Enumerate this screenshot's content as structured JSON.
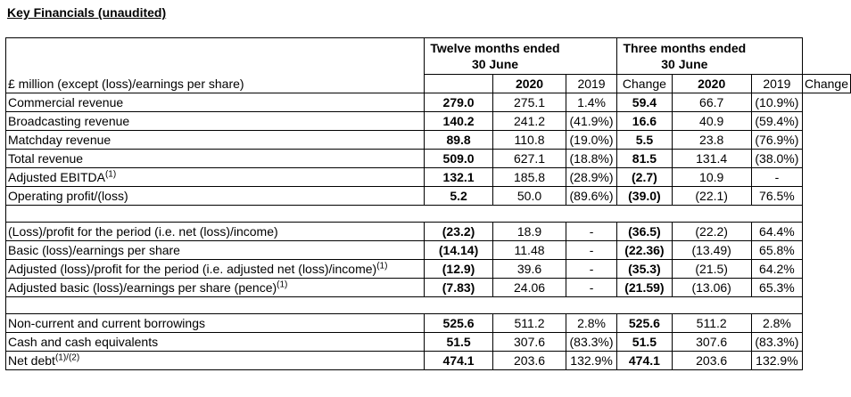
{
  "title": "Key Financials (unaudited)",
  "header": {
    "row_label": "£ million (except (loss)/earnings per share)",
    "group1_line1": "Twelve months ended",
    "group1_line2": "30 June",
    "group2_line1": "Three months ended",
    "group2_line2": "30 June",
    "cols": [
      "2020",
      "2019",
      "Change",
      "2020",
      "2019",
      "Change"
    ]
  },
  "sections": [
    {
      "rows": [
        {
          "label": "Commercial revenue",
          "sup": "",
          "v": [
            "279.0",
            "275.1",
            "1.4%",
            "59.4",
            "66.7",
            "(10.9%)"
          ]
        },
        {
          "label": "Broadcasting revenue",
          "sup": "",
          "v": [
            "140.2",
            "241.2",
            "(41.9%)",
            "16.6",
            "40.9",
            "(59.4%)"
          ]
        },
        {
          "label": "Matchday revenue",
          "sup": "",
          "v": [
            "89.8",
            "110.8",
            "(19.0%)",
            "5.5",
            "23.8",
            "(76.9%)"
          ]
        },
        {
          "label": "Total revenue",
          "sup": "",
          "v": [
            "509.0",
            "627.1",
            "(18.8%)",
            "81.5",
            "131.4",
            "(38.0%)"
          ]
        },
        {
          "label": "Adjusted EBITDA",
          "sup": "(1)",
          "v": [
            "132.1",
            "185.8",
            "(28.9%)",
            "(2.7)",
            "10.9",
            "-"
          ]
        },
        {
          "label": "Operating profit/(loss)",
          "sup": "",
          "v": [
            "5.2",
            "50.0",
            "(89.6%)",
            "(39.0)",
            "(22.1)",
            "76.5%"
          ]
        }
      ]
    },
    {
      "rows": [
        {
          "label": "(Loss)/profit for the period (i.e. net (loss)/income)",
          "sup": "",
          "v": [
            "(23.2)",
            "18.9",
            "-",
            "(36.5)",
            "(22.2)",
            "64.4%"
          ]
        },
        {
          "label": "Basic (loss)/earnings per share",
          "sup": "",
          "v": [
            "(14.14)",
            "11.48",
            "-",
            "(22.36)",
            "(13.49)",
            "65.8%"
          ]
        },
        {
          "label": "Adjusted (loss)/profit for the period (i.e. adjusted net (loss)/income)",
          "sup": "(1)",
          "v": [
            "(12.9)",
            "39.6",
            "-",
            "(35.3)",
            "(21.5)",
            "64.2%"
          ]
        },
        {
          "label": "Adjusted basic (loss)/earnings per share (pence)",
          "sup": "(1)",
          "v": [
            "(7.83)",
            "24.06",
            "-",
            "(21.59)",
            "(13.06)",
            "65.3%"
          ]
        }
      ]
    },
    {
      "rows": [
        {
          "label": "Non-current and current borrowings",
          "sup": "",
          "v": [
            "525.6",
            "511.2",
            "2.8%",
            "525.6",
            "511.2",
            "2.8%"
          ]
        },
        {
          "label": "Cash and cash equivalents",
          "sup": "",
          "v": [
            "51.5",
            "307.6",
            "(83.3%)",
            "51.5",
            "307.6",
            "(83.3%)"
          ]
        },
        {
          "label": "Net debt",
          "sup": "(1)/(2)",
          "v": [
            "474.1",
            "203.6",
            "132.9%",
            "474.1",
            "203.6",
            "132.9%"
          ]
        }
      ]
    }
  ]
}
